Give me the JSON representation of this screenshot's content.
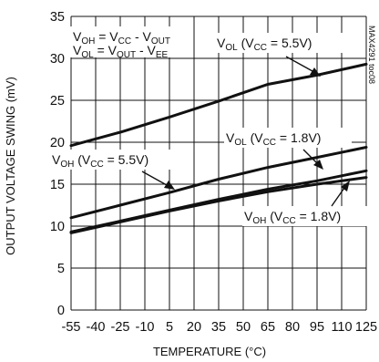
{
  "chart_data": {
    "type": "line",
    "xlabel": "TEMPERATURE (°C)",
    "ylabel": "OUTPUT VOLTAGE SWING (mV)",
    "xlim": [
      -55,
      125
    ],
    "ylim": [
      0,
      35
    ],
    "x_ticks": [
      "-55",
      "-40",
      "-25",
      "-10",
      "5",
      "20",
      "35",
      "50",
      "65",
      "80",
      "95",
      "110",
      "125"
    ],
    "y_ticks": [
      "0",
      "5",
      "10",
      "15",
      "20",
      "25",
      "30",
      "35"
    ],
    "grid": true,
    "series": [
      {
        "name": "VOL (VCC = 5.5V)",
        "x": [
          -55,
          -25,
          5,
          35,
          65,
          95,
          125
        ],
        "y": [
          19.6,
          21.2,
          23.0,
          24.9,
          26.9,
          28.0,
          29.3
        ]
      },
      {
        "name": "VOL (VCC = 1.8V)",
        "x": [
          -55,
          -25,
          5,
          35,
          65,
          95,
          125
        ],
        "y": [
          11.0,
          12.5,
          14.0,
          15.6,
          17.0,
          18.2,
          19.4
        ]
      },
      {
        "name": "VOH (VCC = 5.5V)",
        "x": [
          -55,
          -25,
          5,
          35,
          65,
          95,
          125
        ],
        "y": [
          9.3,
          10.6,
          11.9,
          13.2,
          14.4,
          15.4,
          16.6
        ]
      },
      {
        "name": "VOH (VCC = 1.8V)",
        "x": [
          -55,
          -25,
          5,
          35,
          65,
          95,
          125
        ],
        "y": [
          9.2,
          10.5,
          11.8,
          13.0,
          14.1,
          15.0,
          15.8
        ]
      }
    ],
    "annotations": {
      "formula_1": {
        "a": "V",
        "a_sub": "OH",
        "b": " = V",
        "b_sub": "CC",
        "c": " - V",
        "c_sub": "OUT"
      },
      "formula_2": {
        "a": "V",
        "a_sub": "OL",
        "b": " = V",
        "b_sub": "OUT",
        "c": " - V",
        "c_sub": "EE"
      },
      "label_vol_55": {
        "a": "V",
        "a_sub": "OL",
        "b": " (V",
        "b_sub": "CC",
        "c": " = 5.5V)"
      },
      "label_vol_18": {
        "a": "V",
        "a_sub": "OL",
        "b": " (V",
        "b_sub": "CC",
        "c": " = 1.8V)"
      },
      "label_voh_55": {
        "a": "V",
        "a_sub": "OH",
        "b": " (V",
        "b_sub": "CC",
        "c": " = 5.5V)"
      },
      "label_voh_18": {
        "a": "V",
        "a_sub": "OH",
        "b": " (V",
        "b_sub": "CC",
        "c": " = 1.8V)"
      },
      "figure_code": "MAX4291 toc08"
    }
  }
}
